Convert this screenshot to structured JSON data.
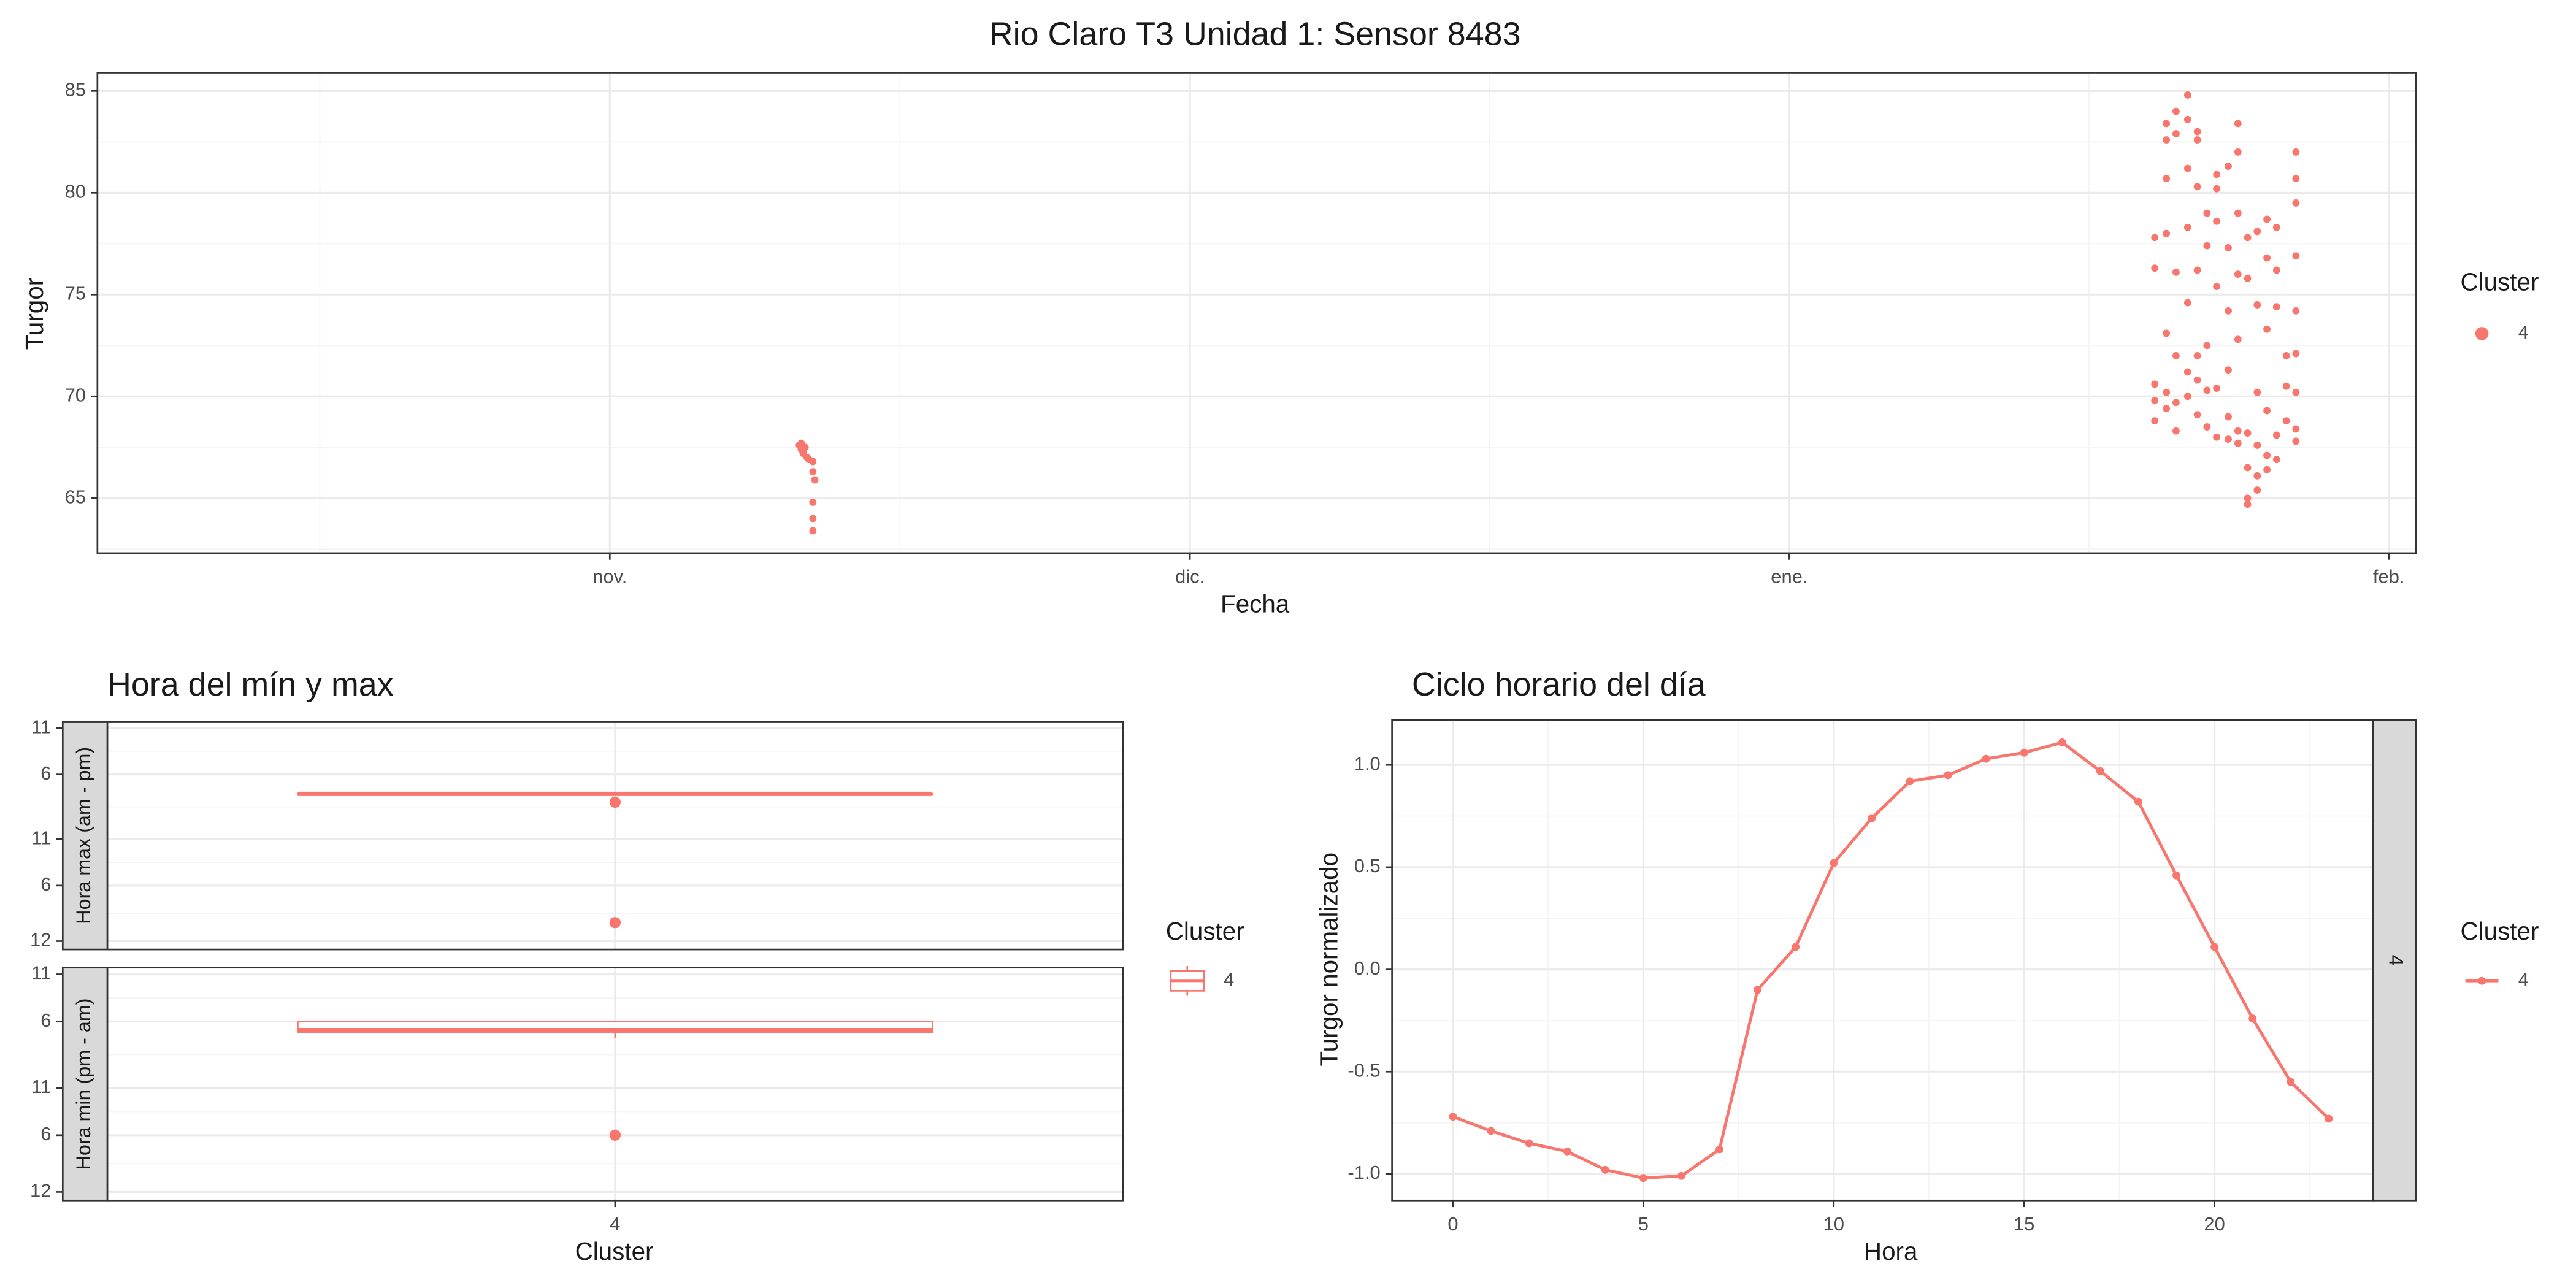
{
  "chart_data": [
    {
      "type": "scatter",
      "title": "Rio Claro T3 Unidad 1: Sensor 8483",
      "x_label": "Fecha",
      "y_label": "Turgor",
      "legend_title": "Cluster",
      "xlim": [
        -26.5,
        93.4
      ],
      "xticks": [
        {
          "value": 0,
          "label": "nov."
        },
        {
          "value": 30,
          "label": "dic."
        },
        {
          "value": 61,
          "label": "ene."
        },
        {
          "value": 92,
          "label": "feb."
        }
      ],
      "ylim": [
        62.3,
        85.9
      ],
      "yticks": [
        65,
        70,
        75,
        80,
        85
      ],
      "grid": true,
      "series": [
        {
          "name": "4",
          "color": "#f8766d",
          "x": [
            9.8,
            9.9,
            10.0,
            10.1,
            10.2,
            10.3,
            10.5,
            10.5,
            10.6,
            10.5,
            10.5,
            10.5,
            9.9,
            10.0,
            79.9,
            79.9,
            79.9,
            79.9,
            79.9,
            80.5,
            80.5,
            80.5,
            80.5,
            80.5,
            80.5,
            80.5,
            81.0,
            81.0,
            81.0,
            81.0,
            81.0,
            81.0,
            81.6,
            81.6,
            81.6,
            81.6,
            81.6,
            81.6,
            81.6,
            82.1,
            82.1,
            82.1,
            82.1,
            82.1,
            82.1,
            82.1,
            82.6,
            82.6,
            82.6,
            82.6,
            82.6,
            83.1,
            83.1,
            83.1,
            83.1,
            83.1,
            83.1,
            83.7,
            83.7,
            83.7,
            83.7,
            83.7,
            83.7,
            84.2,
            84.2,
            84.2,
            84.2,
            84.2,
            84.2,
            84.2,
            84.7,
            84.7,
            84.7,
            84.7,
            84.7,
            84.7,
            85.2,
            85.2,
            85.2,
            85.2,
            85.2,
            85.2,
            85.7,
            85.7,
            85.7,
            85.7,
            85.7,
            85.7,
            86.2,
            86.2,
            86.2,
            86.2,
            86.2,
            86.7,
            86.7,
            86.7,
            87.2,
            87.2,
            87.2,
            87.2,
            87.2,
            87.2,
            87.2,
            87.2,
            87.2
          ],
          "values": [
            67.6,
            67.4,
            67.3,
            67.5,
            67.0,
            66.9,
            66.8,
            66.3,
            65.9,
            64.8,
            64.0,
            63.4,
            67.7,
            67.2,
            70.6,
            69.8,
            68.8,
            76.3,
            77.8,
            83.4,
            82.6,
            80.7,
            78.0,
            73.1,
            70.2,
            69.4,
            84.0,
            82.9,
            76.1,
            72.0,
            69.7,
            68.3,
            84.8,
            83.6,
            81.2,
            78.3,
            74.6,
            71.2,
            70.0,
            83.0,
            82.6,
            80.3,
            76.2,
            72.0,
            70.8,
            69.1,
            79.0,
            77.4,
            72.5,
            70.3,
            68.5,
            80.9,
            80.2,
            78.6,
            75.4,
            70.4,
            68.0,
            81.3,
            77.3,
            74.2,
            71.3,
            69.0,
            67.9,
            83.4,
            82.0,
            79.0,
            76.0,
            72.8,
            68.3,
            67.7,
            77.8,
            75.8,
            68.2,
            66.5,
            65.0,
            64.7,
            78.1,
            74.5,
            70.2,
            67.6,
            66.1,
            65.4,
            78.7,
            76.8,
            73.3,
            69.3,
            67.1,
            66.4,
            78.3,
            76.2,
            74.4,
            68.1,
            66.9,
            72.0,
            70.5,
            68.8,
            82.0,
            80.7,
            79.5,
            76.9,
            74.2,
            72.1,
            70.2,
            68.4,
            67.8
          ]
        }
      ]
    },
    {
      "type": "box",
      "title": "Hora del mín y max",
      "x_label": "Cluster",
      "categories": [
        "4"
      ],
      "legend_title": "Cluster",
      "series": [
        {
          "name": "4",
          "color": "#f8766d"
        }
      ],
      "grid": true,
      "facets": [
        {
          "label": "Hora max (am - pm)",
          "ylim": [
            11.1,
            35.7
          ],
          "yticks": [
            12,
            {
              "value": 18,
              "label": "6"
            },
            {
              "value": 23,
              "label": "11"
            },
            {
              "value": 30,
              "label": "6"
            },
            {
              "value": 35,
              "label": "11"
            }
          ],
          "boxes": [
            {
              "q1": 27.9,
              "median": 27.9,
              "q3": 27.9,
              "whisker_low": 27.9,
              "whisker_high": 27.9,
              "outliers": [
                27.0,
                14.0
              ]
            }
          ]
        },
        {
          "label": "Hora min (pm - am)",
          "ylim": [
            11.1,
            35.7
          ],
          "yticks": [
            12,
            {
              "value": 18,
              "label": "6"
            },
            {
              "value": 23,
              "label": "11"
            },
            {
              "value": 30,
              "label": "6"
            },
            {
              "value": 35,
              "label": "11"
            }
          ],
          "boxes": [
            {
              "q1": 28.9,
              "median": 29.1,
              "q3": 30.0,
              "whisker_low": 28.3,
              "whisker_high": 30.0,
              "outliers": [
                18.0
              ]
            }
          ]
        }
      ]
    },
    {
      "type": "line",
      "title": "Ciclo horario del día",
      "x_label": "Hora",
      "y_label": "Turgor normalizado",
      "facet_label": "4",
      "legend_title": "Cluster",
      "grid": true,
      "xlim": [
        -1.6,
        24.16
      ],
      "xticks": [
        0,
        5,
        10,
        15,
        20
      ],
      "ylim": [
        -1.13,
        1.22
      ],
      "yticks": [
        {
          "value": -1,
          "label": "-1.0"
        },
        -0.5,
        {
          "value": 0,
          "label": "0.0"
        },
        0.5,
        {
          "value": 1,
          "label": "1.0"
        }
      ],
      "x": [
        0,
        1,
        2,
        3,
        4,
        5,
        6,
        7,
        8,
        9,
        10,
        11,
        12,
        13,
        14,
        15,
        16,
        17,
        18,
        19,
        20,
        21,
        22,
        23
      ],
      "series": [
        {
          "name": "4",
          "color": "#f8766d",
          "values": [
            -0.72,
            -0.79,
            -0.85,
            -0.89,
            -0.98,
            -1.02,
            -1.01,
            -0.88,
            -0.1,
            0.11,
            0.52,
            0.74,
            0.92,
            0.95,
            1.03,
            1.06,
            1.11,
            0.97,
            0.82,
            0.46,
            0.11,
            -0.24,
            -0.55,
            -0.73
          ]
        }
      ]
    }
  ]
}
